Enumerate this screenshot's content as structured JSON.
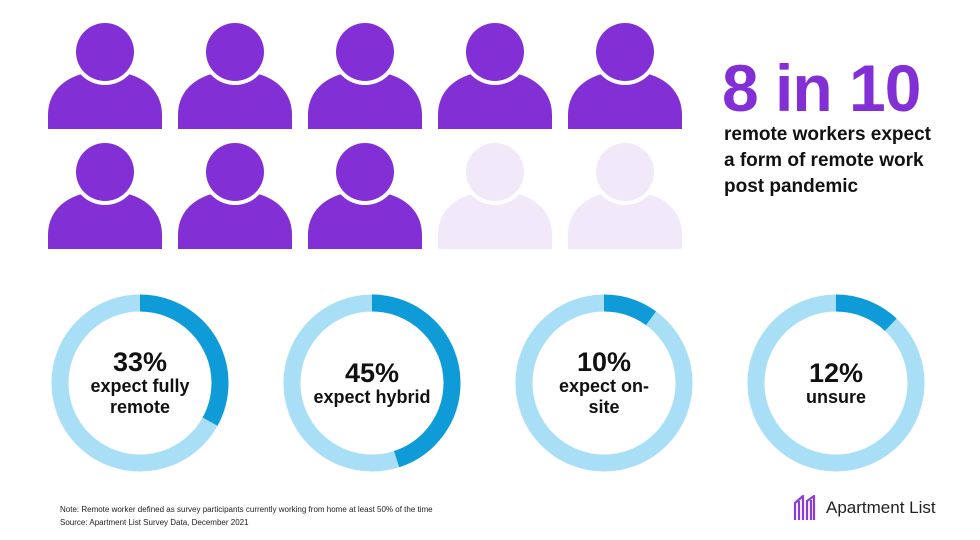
{
  "colors": {
    "person_active": "#8230d6",
    "person_inactive": "#f1e8fa",
    "headline": "#8230d6",
    "donut_track": "#a8dff7",
    "donut_fill": "#0f9bd7",
    "logo_mark": "#8b3cd8"
  },
  "icons": {
    "person": "person-icon",
    "logo": "apartment-list-logo-mark"
  },
  "pictogram": {
    "total": 10,
    "active": 8
  },
  "headline": "8 in 10",
  "subhead": "remote workers expect a form of remote work post pandemic",
  "chart_data": {
    "type": "pie",
    "variant": "donut",
    "slices": [
      {
        "value": 33,
        "pct_label": "33%",
        "description": "expect fully remote"
      },
      {
        "value": 45,
        "pct_label": "45%",
        "description": "expect hybrid"
      },
      {
        "value": 10,
        "pct_label": "10%",
        "description": "expect on-site"
      },
      {
        "value": 12,
        "pct_label": "12%",
        "description": "unsure"
      }
    ]
  },
  "footnote": {
    "note": "Note: Remote worker defined as survey participants currently working from home at least 50% of the time",
    "source": "Source: Apartment List Survey Data, December 2021"
  },
  "logo": {
    "text": "Apartment List"
  }
}
